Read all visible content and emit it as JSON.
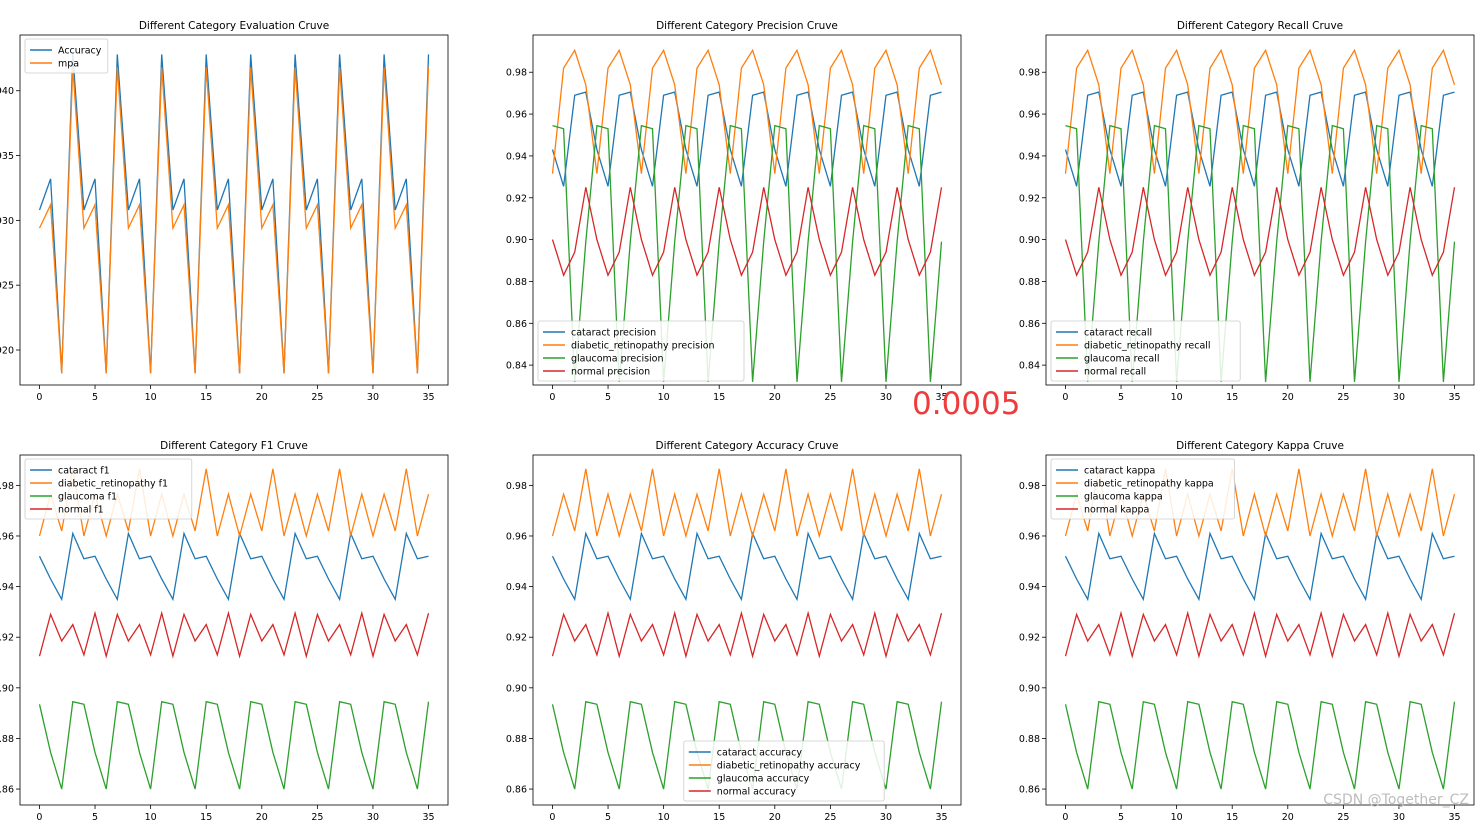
{
  "annotation_value": "0.0005",
  "watermark": "CSDN @Together_CZ",
  "colors": {
    "blue": "#1f77b4",
    "orange": "#ff7f0e",
    "green": "#2ca02c",
    "red": "#d62728"
  },
  "chart_data": [
    {
      "type": "line",
      "title": "Different Category Evaluation Cruve",
      "xlabel": "",
      "ylabel": "",
      "xlim": [
        -1.75,
        36.75
      ],
      "ylim": [
        0.9173,
        0.9443
      ],
      "xticks": [
        0,
        5,
        10,
        15,
        20,
        25,
        30,
        35
      ],
      "yticks": [
        0.92,
        0.925,
        0.93,
        0.935,
        0.94
      ],
      "ytick_labels": [
        "920",
        "925",
        "930",
        "935",
        "940"
      ],
      "legend_position": "upper-left",
      "series": [
        {
          "name": "Accuracy",
          "color": "#1f77b4",
          "pattern": [
            0.9308,
            0.9332,
            0.9182,
            0.9428
          ],
          "offset": 0
        },
        {
          "name": "mpa",
          "color": "#ff7f0e",
          "pattern": [
            0.9294,
            0.9312,
            0.9182,
            0.9418
          ],
          "offset": 0
        }
      ]
    },
    {
      "type": "line",
      "title": "Different Category Precision Cruve",
      "xlabel": "",
      "ylabel": "",
      "xlim": [
        -1.75,
        36.75
      ],
      "ylim": [
        0.8305,
        0.9978
      ],
      "xticks": [
        0,
        5,
        10,
        15,
        20,
        25,
        30,
        35
      ],
      "yticks": [
        0.84,
        0.86,
        0.88,
        0.9,
        0.92,
        0.94,
        0.96,
        0.98
      ],
      "ytick_labels": [
        "0.84",
        "0.86",
        "0.88",
        "0.90",
        "0.92",
        "0.94",
        "0.96",
        "0.98"
      ],
      "legend_position": "lower-left",
      "series": [
        {
          "name": "cataract precision",
          "color": "#1f77b4",
          "pattern": [
            0.943,
            0.9255,
            0.969,
            0.9705
          ],
          "offset": 0
        },
        {
          "name": "diabetic_retinopathy precision",
          "color": "#ff7f0e",
          "pattern": [
            0.9315,
            0.982,
            0.9905,
            0.974
          ],
          "offset": 0
        },
        {
          "name": "glaucoma precision",
          "color": "#2ca02c",
          "pattern": [
            0.9545,
            0.953,
            0.832,
            0.899
          ],
          "offset": 0
        },
        {
          "name": "normal precision",
          "color": "#d62728",
          "pattern": [
            0.9,
            0.883,
            0.894,
            0.925
          ],
          "offset": 0
        }
      ]
    },
    {
      "type": "line",
      "title": "Different Category Recall Cruve",
      "xlabel": "",
      "ylabel": "",
      "xlim": [
        -1.75,
        36.75
      ],
      "ylim": [
        0.8305,
        0.9978
      ],
      "xticks": [
        0,
        5,
        10,
        15,
        20,
        25,
        30,
        35
      ],
      "yticks": [
        0.84,
        0.86,
        0.88,
        0.9,
        0.92,
        0.94,
        0.96,
        0.98
      ],
      "ytick_labels": [
        "0.84",
        "0.86",
        "0.88",
        "0.90",
        "0.92",
        "0.94",
        "0.96",
        "0.98"
      ],
      "legend_position": "lower-left",
      "series": [
        {
          "name": "cataract recall",
          "color": "#1f77b4",
          "pattern": [
            0.943,
            0.9255,
            0.969,
            0.9705
          ],
          "offset": 0
        },
        {
          "name": "diabetic_retinopathy recall",
          "color": "#ff7f0e",
          "pattern": [
            0.9315,
            0.982,
            0.9905,
            0.974
          ],
          "offset": 0
        },
        {
          "name": "glaucoma recall",
          "color": "#2ca02c",
          "pattern": [
            0.9545,
            0.953,
            0.832,
            0.899
          ],
          "offset": 0
        },
        {
          "name": "normal recall",
          "color": "#d62728",
          "pattern": [
            0.9,
            0.883,
            0.894,
            0.925
          ],
          "offset": 0
        }
      ]
    },
    {
      "type": "line",
      "title": "Different Category F1 Cruve",
      "xlabel": "",
      "ylabel": "",
      "xlim": [
        -1.75,
        36.75
      ],
      "ylim": [
        0.8537,
        0.992
      ],
      "xticks": [
        0,
        5,
        10,
        15,
        20,
        25,
        30,
        35
      ],
      "yticks": [
        0.86,
        0.88,
        0.9,
        0.92,
        0.94,
        0.96,
        0.98
      ],
      "ytick_labels": [
        ".86",
        ".88",
        ".90",
        ".92",
        ".94",
        ".96",
        ".98"
      ],
      "legend_position": "upper-left",
      "series": [
        {
          "name": "cataract f1",
          "color": "#1f77b4",
          "pattern": [
            0.952,
            0.943,
            0.935,
            0.961,
            0.951
          ],
          "offset": 0
        },
        {
          "name": "diabetic_retinopathy f1",
          "color": "#ff7f0e",
          "pattern": [
            0.96,
            0.9765,
            0.962,
            0.9865,
            0.96,
            0.9765
          ],
          "offset": 0
        },
        {
          "name": "glaucoma f1",
          "color": "#2ca02c",
          "pattern": [
            0.8935,
            0.8745,
            0.86,
            0.8945
          ],
          "offset": 0
        },
        {
          "name": "normal f1",
          "color": "#d62728",
          "pattern": [
            0.9125,
            0.929,
            0.9185,
            0.925,
            0.913,
            0.9295
          ],
          "offset": 0
        }
      ]
    },
    {
      "type": "line",
      "title": "Different Category Accuracy Cruve",
      "xlabel": "",
      "ylabel": "",
      "xlim": [
        -1.75,
        36.75
      ],
      "ylim": [
        0.8537,
        0.992
      ],
      "xticks": [
        0,
        5,
        10,
        15,
        20,
        25,
        30,
        35
      ],
      "yticks": [
        0.86,
        0.88,
        0.9,
        0.92,
        0.94,
        0.96,
        0.98
      ],
      "ytick_labels": [
        "0.86",
        "0.88",
        "0.90",
        "0.92",
        "0.94",
        "0.96",
        "0.98"
      ],
      "legend_position": "lower-center",
      "series": [
        {
          "name": "cataract accuracy",
          "color": "#1f77b4",
          "pattern": [
            0.952,
            0.943,
            0.935,
            0.961,
            0.951
          ],
          "offset": 0
        },
        {
          "name": "diabetic_retinopathy accuracy",
          "color": "#ff7f0e",
          "pattern": [
            0.96,
            0.9765,
            0.962,
            0.9865,
            0.96,
            0.9765
          ],
          "offset": 0
        },
        {
          "name": "glaucoma accuracy",
          "color": "#2ca02c",
          "pattern": [
            0.8935,
            0.8745,
            0.86,
            0.8945
          ],
          "offset": 0
        },
        {
          "name": "normal accuracy",
          "color": "#d62728",
          "pattern": [
            0.9125,
            0.929,
            0.9185,
            0.925,
            0.913,
            0.9295
          ],
          "offset": 0
        }
      ]
    },
    {
      "type": "line",
      "title": "Different Category Kappa Cruve",
      "xlabel": "",
      "ylabel": "",
      "xlim": [
        -1.75,
        36.75
      ],
      "ylim": [
        0.8537,
        0.992
      ],
      "xticks": [
        0,
        5,
        10,
        15,
        20,
        25,
        30,
        35
      ],
      "yticks": [
        0.86,
        0.88,
        0.9,
        0.92,
        0.94,
        0.96,
        0.98
      ],
      "ytick_labels": [
        "0.86",
        "0.88",
        "0.90",
        "0.92",
        "0.94",
        "0.96",
        "0.98"
      ],
      "legend_position": "upper-left",
      "series": [
        {
          "name": "cataract kappa",
          "color": "#1f77b4",
          "pattern": [
            0.952,
            0.943,
            0.935,
            0.961,
            0.951
          ],
          "offset": 0
        },
        {
          "name": "diabetic_retinopathy kappa",
          "color": "#ff7f0e",
          "pattern": [
            0.96,
            0.9765,
            0.962,
            0.9865,
            0.96,
            0.9765
          ],
          "offset": 0
        },
        {
          "name": "glaucoma kappa",
          "color": "#2ca02c",
          "pattern": [
            0.8935,
            0.8745,
            0.86,
            0.8945
          ],
          "offset": 0
        },
        {
          "name": "normal kappa",
          "color": "#d62728",
          "pattern": [
            0.9125,
            0.929,
            0.9185,
            0.925,
            0.913,
            0.9295
          ],
          "offset": 0
        }
      ]
    }
  ]
}
